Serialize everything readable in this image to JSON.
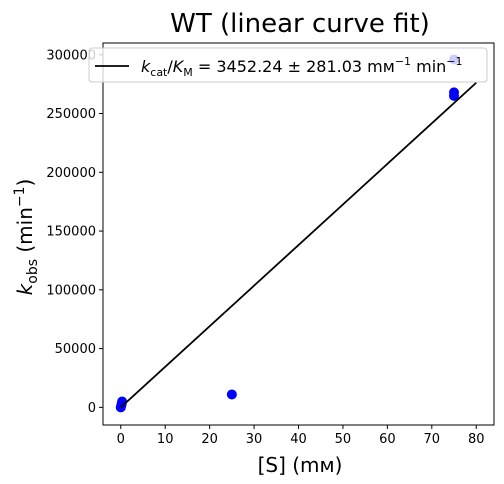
{
  "chart_data": {
    "type": "scatter",
    "title": "WT (linear curve fit)",
    "xlabel": "[S] (mм)",
    "ylabel": {
      "base": "k",
      "sub": "obs",
      "mid": " (min",
      "sup": "−1",
      "end": ")"
    },
    "xlim": [
      -4,
      84
    ],
    "ylim": [
      -15000,
      310000
    ],
    "xticks": [
      "0",
      "10",
      "20",
      "30",
      "40",
      "50",
      "60",
      "70",
      "80"
    ],
    "yticks": [
      "0",
      "50000",
      "100000",
      "150000",
      "200000",
      "250000",
      "300000"
    ],
    "grid": false,
    "legend_position": "top-right",
    "colors": {
      "points": "#0000ff",
      "fit_line": "#000000"
    },
    "series": [
      {
        "type": "scatter",
        "x": [
          0,
          0.1,
          0.2,
          0.3,
          25,
          75,
          75,
          75
        ],
        "y": [
          0,
          1500,
          3000,
          5000,
          11000,
          265000,
          268000,
          296000
        ]
      },
      {
        "type": "line",
        "name": {
          "k1": "k",
          "s1": "cat",
          "slash": "/",
          "k2": "K",
          "s2": "M",
          "rest": " = 3452.24 ± 281.03 mм",
          "sup1": "−1",
          "mid": " min",
          "sup2": "−1"
        },
        "slope": 3452.24,
        "slope_err": 281.03,
        "x": [
          0,
          80
        ],
        "y": [
          0,
          276179
        ]
      }
    ]
  }
}
